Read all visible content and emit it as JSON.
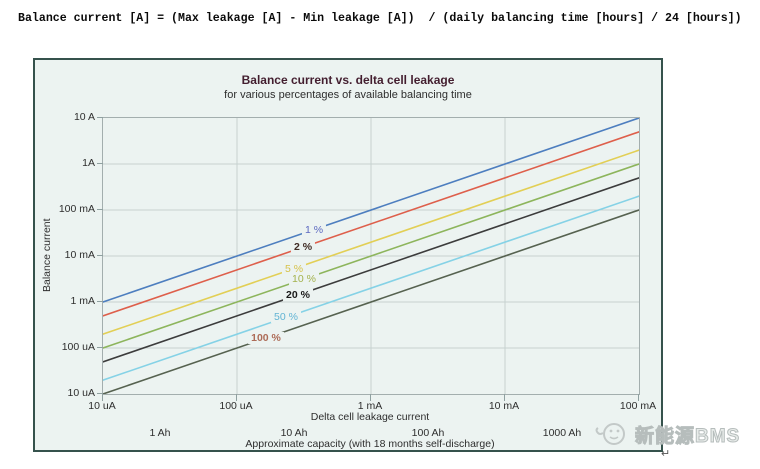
{
  "formula": "Balance current [A] = (Max leakage [A] - Min leakage [A])  / (daily balancing time [hours] / 24 [hours])",
  "watermark": {
    "text": "新能源BMS",
    "icon": "smiley-face-sticker"
  },
  "return_mark": "↵",
  "chart_data": {
    "type": "line",
    "scale": "log-log",
    "title": "Balance current vs. delta cell leakage",
    "subtitle": "for various percentages of available balancing time",
    "xlabel": "Delta cell leakage current",
    "ylabel": "Balance current",
    "x2label": "Approximate capacity (with 18 months self-discharge)",
    "x_ticks": [
      "10 uA",
      "100 uA",
      "1 mA",
      "10 mA",
      "100 mA"
    ],
    "y_ticks": [
      "10 A",
      "1A",
      "100 mA",
      "10 mA",
      "1 mA",
      "100 uA",
      "10 uA"
    ],
    "x2_ticks": [
      "1 Ah",
      "10 Ah",
      "100 Ah",
      "1000 Ah"
    ],
    "x_range_amps": [
      1e-05,
      0.1
    ],
    "y_range_amps": [
      1e-05,
      10
    ],
    "grid": "on",
    "relation": "balance_current = delta_leakage / (percent_balancing_time / 100)",
    "series": [
      {
        "label": "1 %",
        "percent": 1,
        "line_color": "#4d7ebf",
        "label_color": "#5b68c0",
        "bold": false,
        "y_at_10uA": "1 mA",
        "y_at_100mA": "10 A"
      },
      {
        "label": "2 %",
        "percent": 2,
        "line_color": "#de5f4b",
        "label_color": "#3f2b24",
        "bold": true,
        "y_at_10uA": "500 uA",
        "y_at_100mA": "5 A"
      },
      {
        "label": "5 %",
        "percent": 5,
        "line_color": "#e2cf55",
        "label_color": "#d6c24a",
        "bold": false,
        "y_at_10uA": "200 uA",
        "y_at_100mA": "2 A"
      },
      {
        "label": "10 %",
        "percent": 10,
        "line_color": "#8db55c",
        "label_color": "#a4b24e",
        "bold": false,
        "y_at_10uA": "100 uA",
        "y_at_100mA": "1 A"
      },
      {
        "label": "20 %",
        "percent": 20,
        "line_color": "#3c3c3c",
        "label_color": "#1a1a1a",
        "bold": true,
        "y_at_10uA": "50 uA",
        "y_at_100mA": "500 mA"
      },
      {
        "label": "50 %",
        "percent": 50,
        "line_color": "#85d2e6",
        "label_color": "#62b4d4",
        "bold": false,
        "y_at_10uA": "20 uA",
        "y_at_100mA": "200 mA"
      },
      {
        "label": "100 %",
        "percent": 100,
        "line_color": "#566250",
        "label_color": "#ad6c58",
        "bold": true,
        "y_at_10uA": "10 uA",
        "y_at_100mA": "100 mA"
      }
    ],
    "colors": {
      "chart_background": "#ecf3f1",
      "chart_border": "#35524c",
      "plot_border": "#a3aeae",
      "gridline": "#c7d1d0",
      "title": "#431e2f",
      "text": "#2e2e2e"
    }
  }
}
